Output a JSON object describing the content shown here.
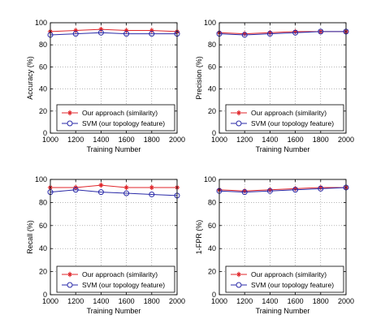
{
  "colors": {
    "series_1": "#e0262b",
    "series_2": "#2a2aa8",
    "axis": "#000000",
    "grid": "#8a8a8a",
    "background": "#ffffff"
  },
  "chart_data": [
    {
      "type": "line",
      "xlabel": "Training Number",
      "ylabel": "Accuracy (%)",
      "x": [
        1000,
        1200,
        1400,
        1600,
        1800,
        2000
      ],
      "xlim": [
        1000,
        2000
      ],
      "ylim": [
        0,
        100
      ],
      "xticks": [
        "1000",
        "1200",
        "1400",
        "1600",
        "1800",
        "2000"
      ],
      "yticks": [
        "0",
        "20",
        "40",
        "60",
        "80",
        "100"
      ],
      "grid": true,
      "legend_position": "bottom-right",
      "series": [
        {
          "name": "Our approach (similarity)",
          "marker": "star",
          "values": [
            92,
            93,
            94,
            93,
            93,
            92
          ]
        },
        {
          "name": "SVM (our topology feature)",
          "marker": "circle",
          "values": [
            89,
            90,
            91,
            90,
            90,
            90
          ]
        }
      ]
    },
    {
      "type": "line",
      "xlabel": "Training Number",
      "ylabel": "Precision (%)",
      "x": [
        1000,
        1200,
        1400,
        1600,
        1800,
        2000
      ],
      "xlim": [
        1000,
        2000
      ],
      "ylim": [
        0,
        100
      ],
      "xticks": [
        "1000",
        "1200",
        "1400",
        "1600",
        "1800",
        "2000"
      ],
      "yticks": [
        "0",
        "20",
        "40",
        "60",
        "80",
        "100"
      ],
      "grid": true,
      "legend_position": "bottom-right",
      "series": [
        {
          "name": "Our approach (similarity)",
          "marker": "star",
          "values": [
            91,
            90,
            91,
            92,
            92,
            92
          ]
        },
        {
          "name": "SVM (our topology feature)",
          "marker": "circle",
          "values": [
            90,
            89,
            90,
            91,
            92,
            92
          ]
        }
      ]
    },
    {
      "type": "line",
      "xlabel": "Training Number",
      "ylabel": "Recall (%)",
      "x": [
        1000,
        1200,
        1400,
        1600,
        1800,
        2000
      ],
      "xlim": [
        1000,
        2000
      ],
      "ylim": [
        0,
        100
      ],
      "xticks": [
        "1000",
        "1200",
        "1400",
        "1600",
        "1800",
        "2000"
      ],
      "yticks": [
        "0",
        "20",
        "40",
        "60",
        "80",
        "100"
      ],
      "grid": true,
      "legend_position": "bottom-right",
      "series": [
        {
          "name": "Our approach (similarity)",
          "marker": "star",
          "values": [
            93,
            93,
            95,
            93,
            93,
            93
          ]
        },
        {
          "name": "SVM (our topology feature)",
          "marker": "circle",
          "values": [
            89,
            91,
            89,
            88,
            87,
            86
          ]
        }
      ]
    },
    {
      "type": "line",
      "xlabel": "Training Number",
      "ylabel": "1-FPR (%)",
      "x": [
        1000,
        1200,
        1400,
        1600,
        1800,
        2000
      ],
      "xlim": [
        1000,
        2000
      ],
      "ylim": [
        0,
        100
      ],
      "xticks": [
        "1000",
        "1200",
        "1400",
        "1600",
        "1800",
        "2000"
      ],
      "yticks": [
        "0",
        "20",
        "40",
        "60",
        "80",
        "100"
      ],
      "grid": true,
      "legend_position": "bottom-right",
      "series": [
        {
          "name": "Our approach (similarity)",
          "marker": "star",
          "values": [
            91,
            90,
            91,
            92,
            93,
            93
          ]
        },
        {
          "name": "SVM (our topology feature)",
          "marker": "circle",
          "values": [
            90,
            89,
            90,
            91,
            92,
            93
          ]
        }
      ]
    }
  ]
}
